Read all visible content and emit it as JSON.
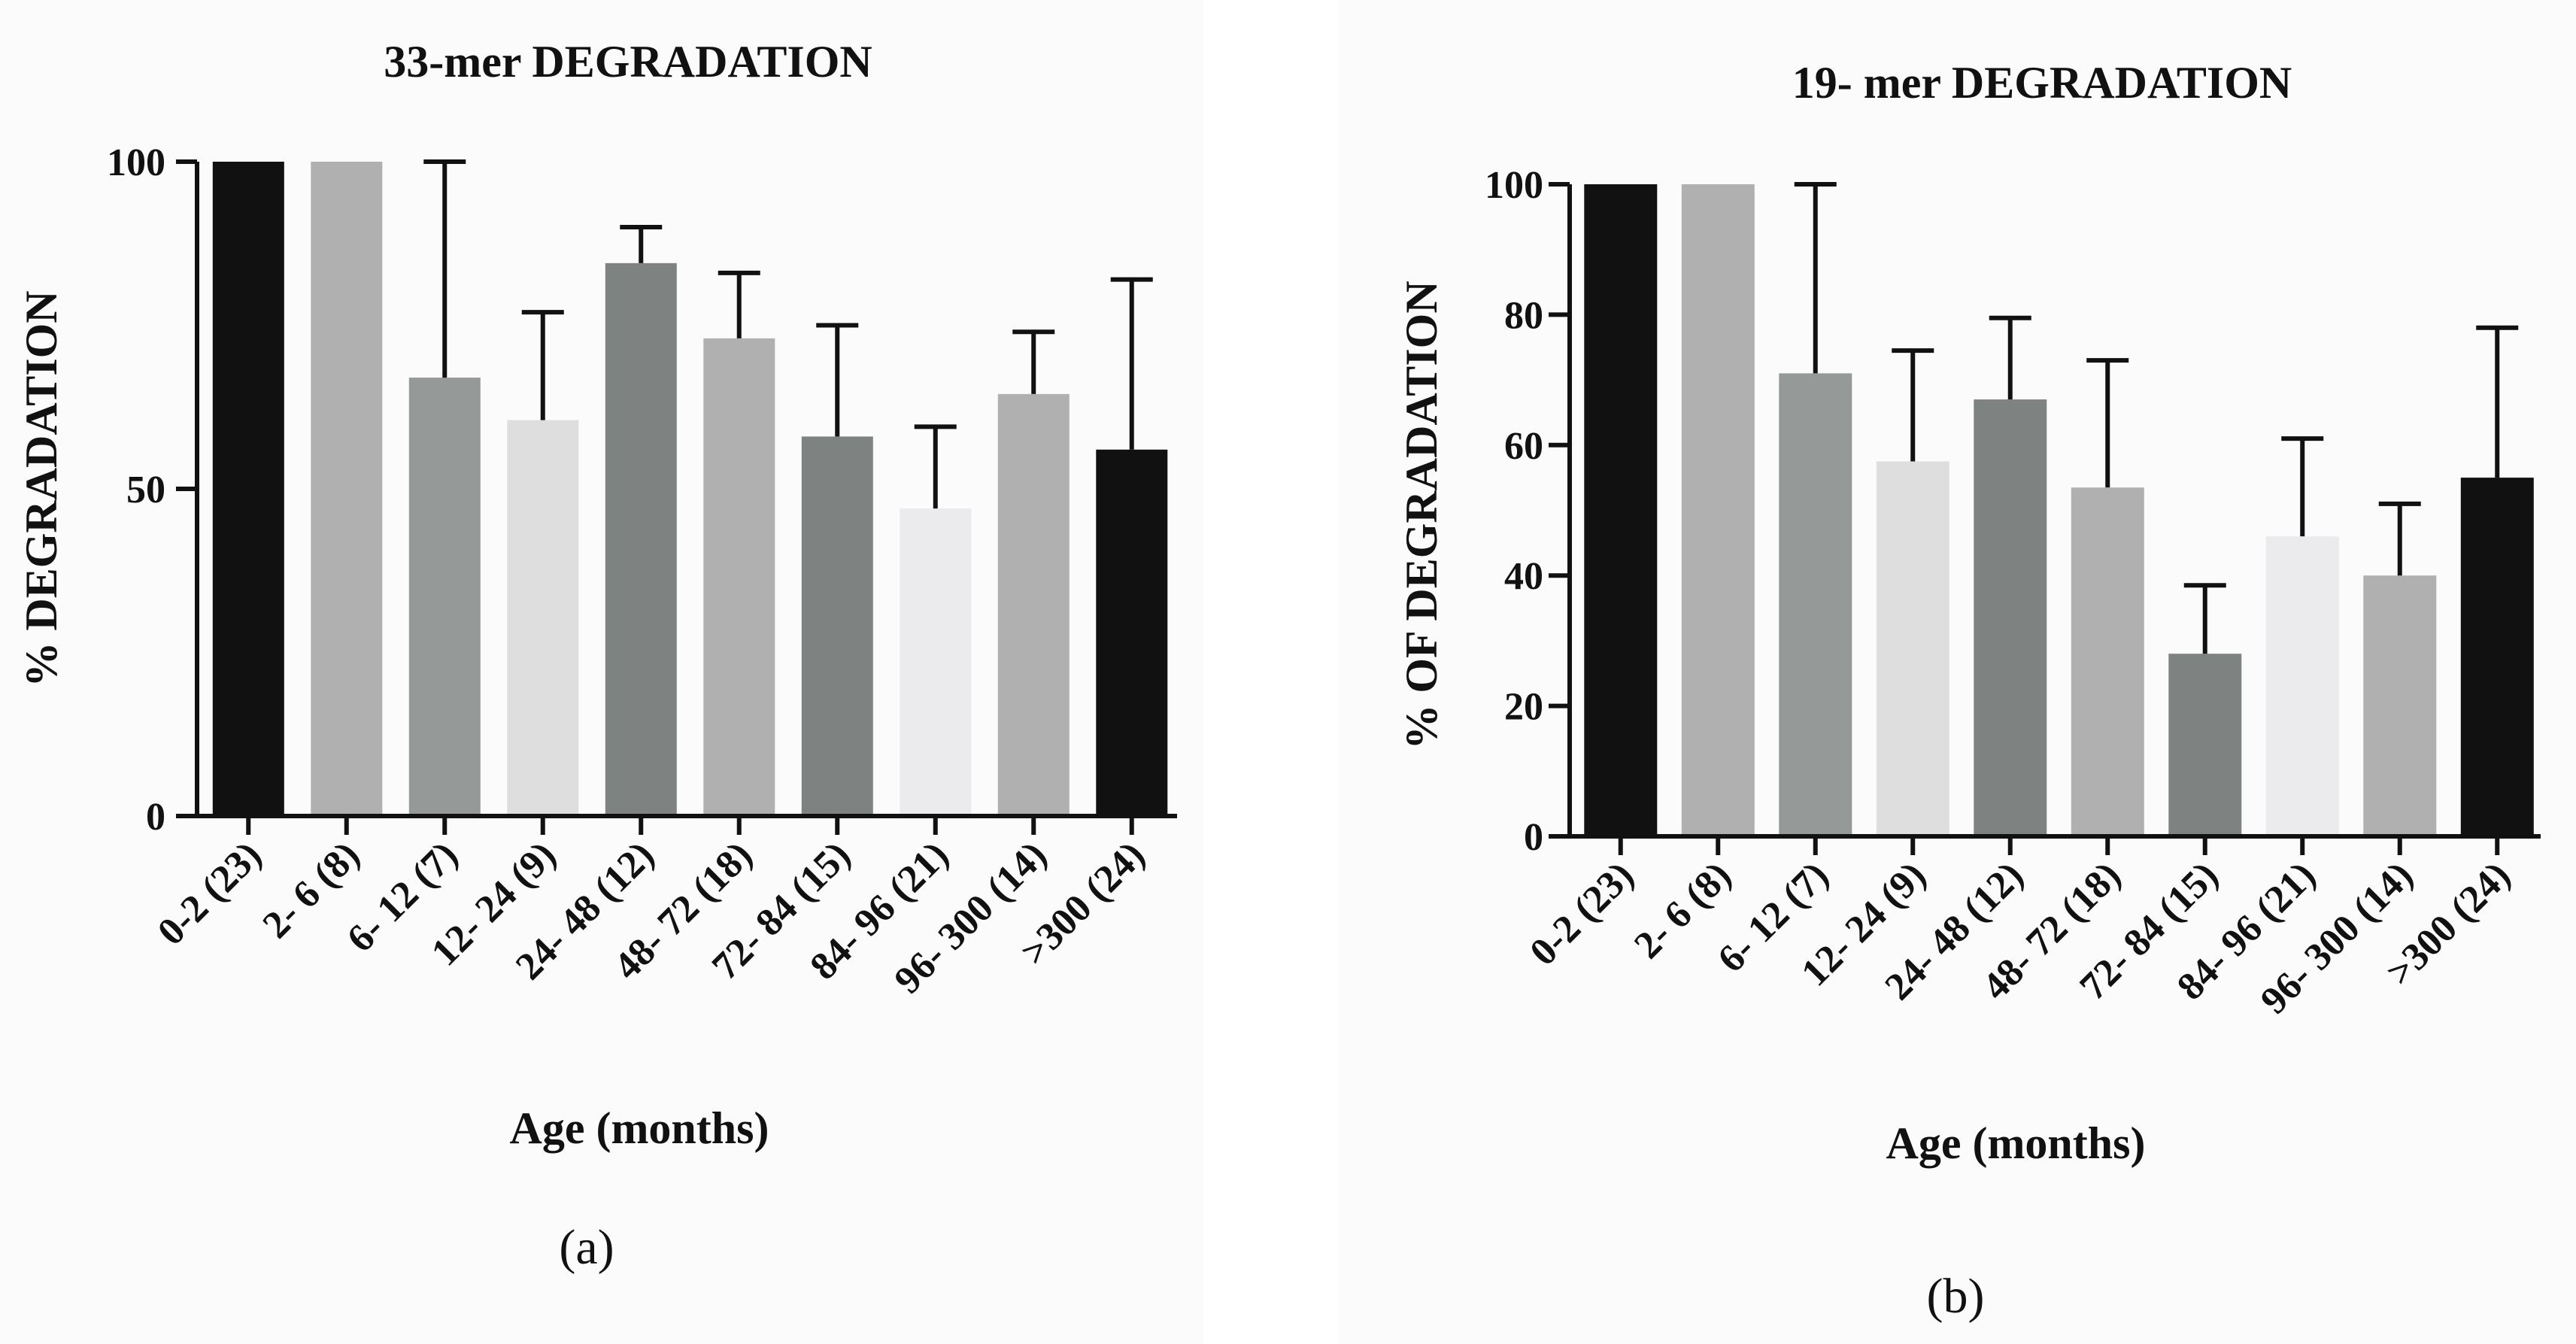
{
  "chart_data": [
    {
      "type": "bar",
      "panel": "(a)",
      "title": "33-mer DEGRADATION",
      "xlabel": "Age (months)",
      "ylabel": "% DEGRADATION",
      "ylim": [
        0,
        100
      ],
      "yticks": [
        0,
        50,
        100
      ],
      "categories": [
        "0-2 (23)",
        "2- 6 (8)",
        "6- 12 (7)",
        "12- 24 (9)",
        "24- 48 (12)",
        "48- 72 (18)",
        "72- 84 (15)",
        "84- 96 (21)",
        "96- 300 (14)",
        ">300 (24)"
      ],
      "values": [
        100,
        100,
        67,
        60.5,
        84.5,
        73,
        58,
        47,
        64.5,
        56
      ],
      "error_upper": [
        100,
        100,
        100,
        77,
        90,
        83,
        75,
        59.5,
        74,
        82
      ],
      "colors": [
        "#111111",
        "#b0b0b0",
        "#959998",
        "#dedede",
        "#7e8381",
        "#b0b0b0",
        "#7e8381",
        "#ebeaed",
        "#b0b0b0",
        "#111111"
      ]
    },
    {
      "type": "bar",
      "panel": "(b)",
      "title": "19- mer DEGRADATION",
      "xlabel": "Age (months)",
      "ylabel": "% OF DEGRADATION",
      "ylim": [
        0,
        100
      ],
      "yticks": [
        0,
        20,
        40,
        60,
        80,
        100
      ],
      "categories": [
        "0-2 (23)",
        "2- 6 (8)",
        "6- 12 (7)",
        "12- 24 (9)",
        "24- 48 (12)",
        "48- 72 (18)",
        "72- 84 (15)",
        "84- 96 (21)",
        "96- 300 (14)",
        ">300 (24)"
      ],
      "values": [
        100,
        100,
        71,
        57.5,
        67,
        53.5,
        28,
        46,
        40,
        55
      ],
      "error_upper": [
        100,
        100,
        100,
        74.5,
        79.5,
        73,
        38.5,
        61,
        51,
        78
      ],
      "colors": [
        "#111111",
        "#b0b0b0",
        "#959998",
        "#dedede",
        "#7e8381",
        "#b0b0b0",
        "#7e8381",
        "#ebeaed",
        "#b0b0b0",
        "#111111"
      ]
    }
  ]
}
